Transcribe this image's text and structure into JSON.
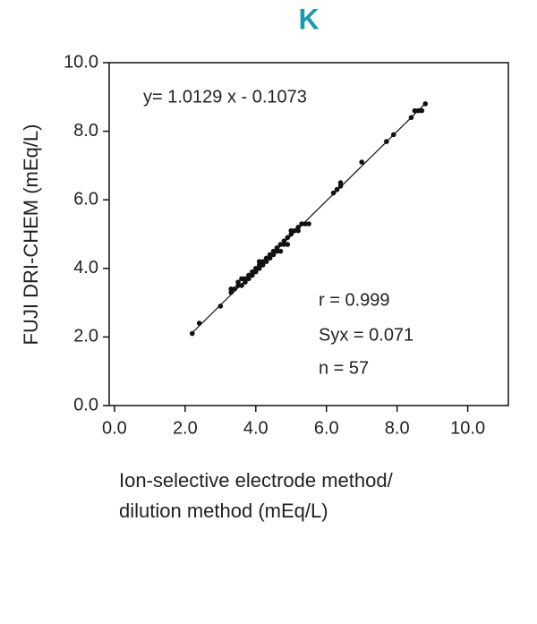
{
  "chart_data": {
    "type": "scatter",
    "title": "K",
    "x_label_lines": [
      "Ion-selective electrode method/",
      "dilution method (mEq/L)"
    ],
    "y_label": "FUJI DRI-CHEM (mEq/L)",
    "color": "#111111",
    "title_color": "#1a9bb0",
    "xlim": [
      -0.15,
      11.15
    ],
    "ylim": [
      0,
      10
    ],
    "xticks": [
      {
        "value": 0,
        "label": "0.0"
      },
      {
        "value": 2,
        "label": "2.0"
      },
      {
        "value": 4,
        "label": "4.0"
      },
      {
        "value": 6,
        "label": "6.0"
      },
      {
        "value": 8,
        "label": "8.0"
      },
      {
        "value": 10,
        "label": "10.0"
      }
    ],
    "yticks": [
      {
        "value": 0,
        "label": "0.0"
      },
      {
        "value": 2,
        "label": "2.0"
      },
      {
        "value": 4,
        "label": "4.0"
      },
      {
        "value": 6,
        "label": "6.0"
      },
      {
        "value": 8,
        "label": "8.0"
      },
      {
        "value": 10,
        "label": "10.0"
      }
    ],
    "regression": {
      "label": "y= 1.0129 x - 0.1073",
      "slope": 1.0129,
      "intercept": -0.1073
    },
    "stats": [
      "r = 0.999",
      "Syx = 0.071",
      "n = 57"
    ],
    "x": [
      2.2,
      2.4,
      3.0,
      3.3,
      3.4,
      3.5,
      3.6,
      3.7,
      3.8,
      3.9,
      3.9,
      4.0,
      4.1,
      4.1,
      4.2,
      4.3,
      4.4,
      4.5,
      4.5,
      4.6,
      4.7,
      4.7,
      4.8,
      4.9,
      5.0,
      5.1,
      5.2,
      5.3,
      5.5,
      6.2,
      6.4,
      6.4,
      7.0,
      7.7,
      7.9,
      8.4,
      8.5,
      8.6,
      8.8,
      8.7,
      3.3,
      3.5,
      3.6,
      3.8,
      4.0,
      4.2,
      4.3,
      4.6,
      4.8,
      4.9,
      5.0,
      5.2,
      5.4,
      6.3,
      4.4,
      3.7,
      4.1
    ],
    "values": [
      2.1,
      2.4,
      2.9,
      3.3,
      3.4,
      3.5,
      3.5,
      3.7,
      3.7,
      3.8,
      3.9,
      4.0,
      4.0,
      4.1,
      4.2,
      4.3,
      4.3,
      4.4,
      4.5,
      4.6,
      4.5,
      4.7,
      4.8,
      4.7,
      5.0,
      5.1,
      5.2,
      5.3,
      5.3,
      6.2,
      6.4,
      6.5,
      7.1,
      7.7,
      7.9,
      8.4,
      8.6,
      8.6,
      8.8,
      8.6,
      3.4,
      3.6,
      3.7,
      3.8,
      3.9,
      4.1,
      4.2,
      4.5,
      4.7,
      4.9,
      5.1,
      5.1,
      5.3,
      6.3,
      4.4,
      3.6,
      4.2
    ]
  }
}
